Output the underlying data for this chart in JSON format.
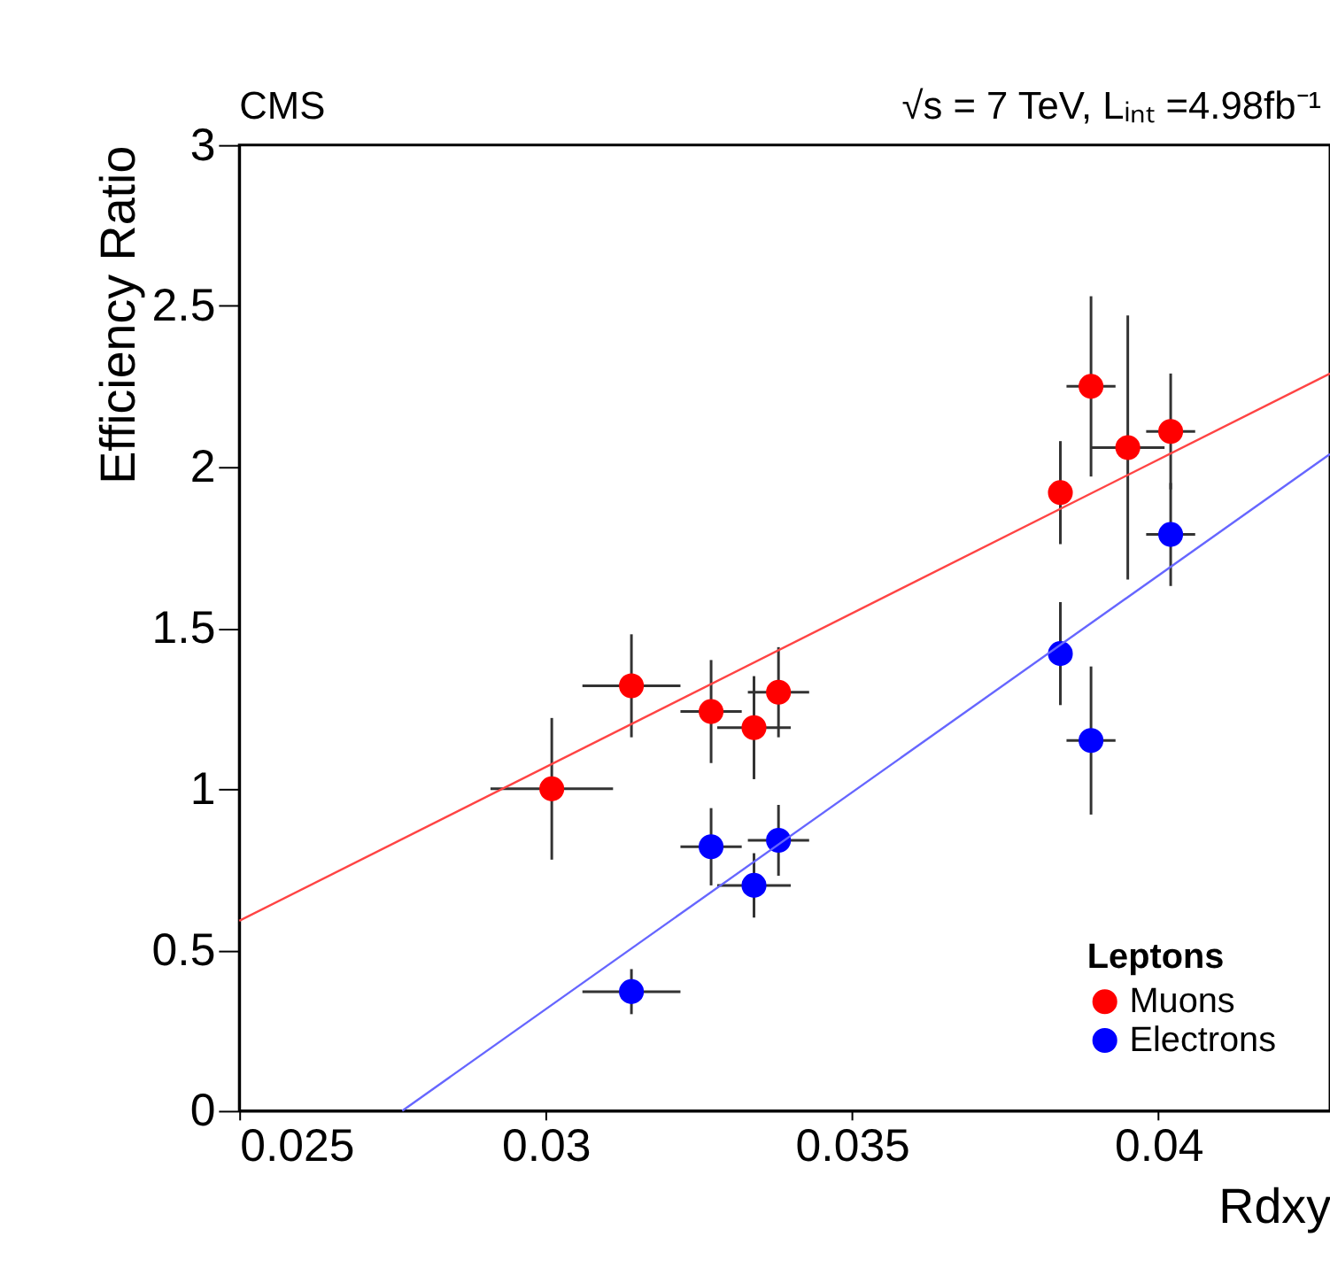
{
  "chart_data": {
    "type": "scatter",
    "xlabel": "Rdxy",
    "ylabel": "Efficiency Ratio",
    "legend_title": "Leptons",
    "legend": "bottom right",
    "grid": false,
    "marker": "circle",
    "annotations": [
      "CMS",
      "√s = 7 TeV, Lᵢₙₜ =4.98fb⁻¹"
    ],
    "xlim": [
      0.025,
      0.0428
    ],
    "xticks": [
      0.025,
      0.03,
      0.035,
      0.04
    ],
    "ylim": [
      0,
      3
    ],
    "yticks": [
      0,
      0.5,
      1,
      1.5,
      2,
      2.5,
      3
    ],
    "series": [
      {
        "name": "Muons",
        "color": "#ff0000",
        "x": [
          0.0301,
          0.0314,
          0.0327,
          0.0334,
          0.0338,
          0.0384,
          0.0389,
          0.0395,
          0.0402
        ],
        "values": [
          1.0,
          1.32,
          1.24,
          1.19,
          1.3,
          1.92,
          2.25,
          2.06,
          2.11
        ],
        "errors": [
          0.22,
          0.16,
          0.16,
          0.16,
          0.14,
          0.16,
          0.28,
          0.41,
          0.18
        ],
        "xerrors": [
          0.001,
          0.0008,
          0.0005,
          0.0006,
          0.0005,
          null,
          0.0004,
          0.0006,
          0.0004
        ]
      },
      {
        "name": "Electrons",
        "color": "#0000ff",
        "x": [
          0.0314,
          0.0327,
          0.0334,
          0.0338,
          0.0384,
          0.0389,
          0.0402
        ],
        "values": [
          0.37,
          0.82,
          0.7,
          0.84,
          1.42,
          1.15,
          1.79
        ],
        "errors": [
          0.07,
          0.12,
          0.1,
          0.11,
          0.16,
          0.23,
          0.16
        ],
        "xerrors": [
          0.0008,
          0.0005,
          0.0006,
          0.0005,
          null,
          0.0004,
          0.0004
        ]
      },
      {
        "type": "line",
        "marker": "none",
        "color": "#ff4444",
        "x": [
          0.025,
          0.0428
        ],
        "values": [
          0.59,
          2.29
        ]
      },
      {
        "type": "line",
        "marker": "none",
        "color": "#6666ff",
        "x": [
          0.02766,
          0.0428
        ],
        "values": [
          0,
          2.04
        ]
      }
    ]
  }
}
